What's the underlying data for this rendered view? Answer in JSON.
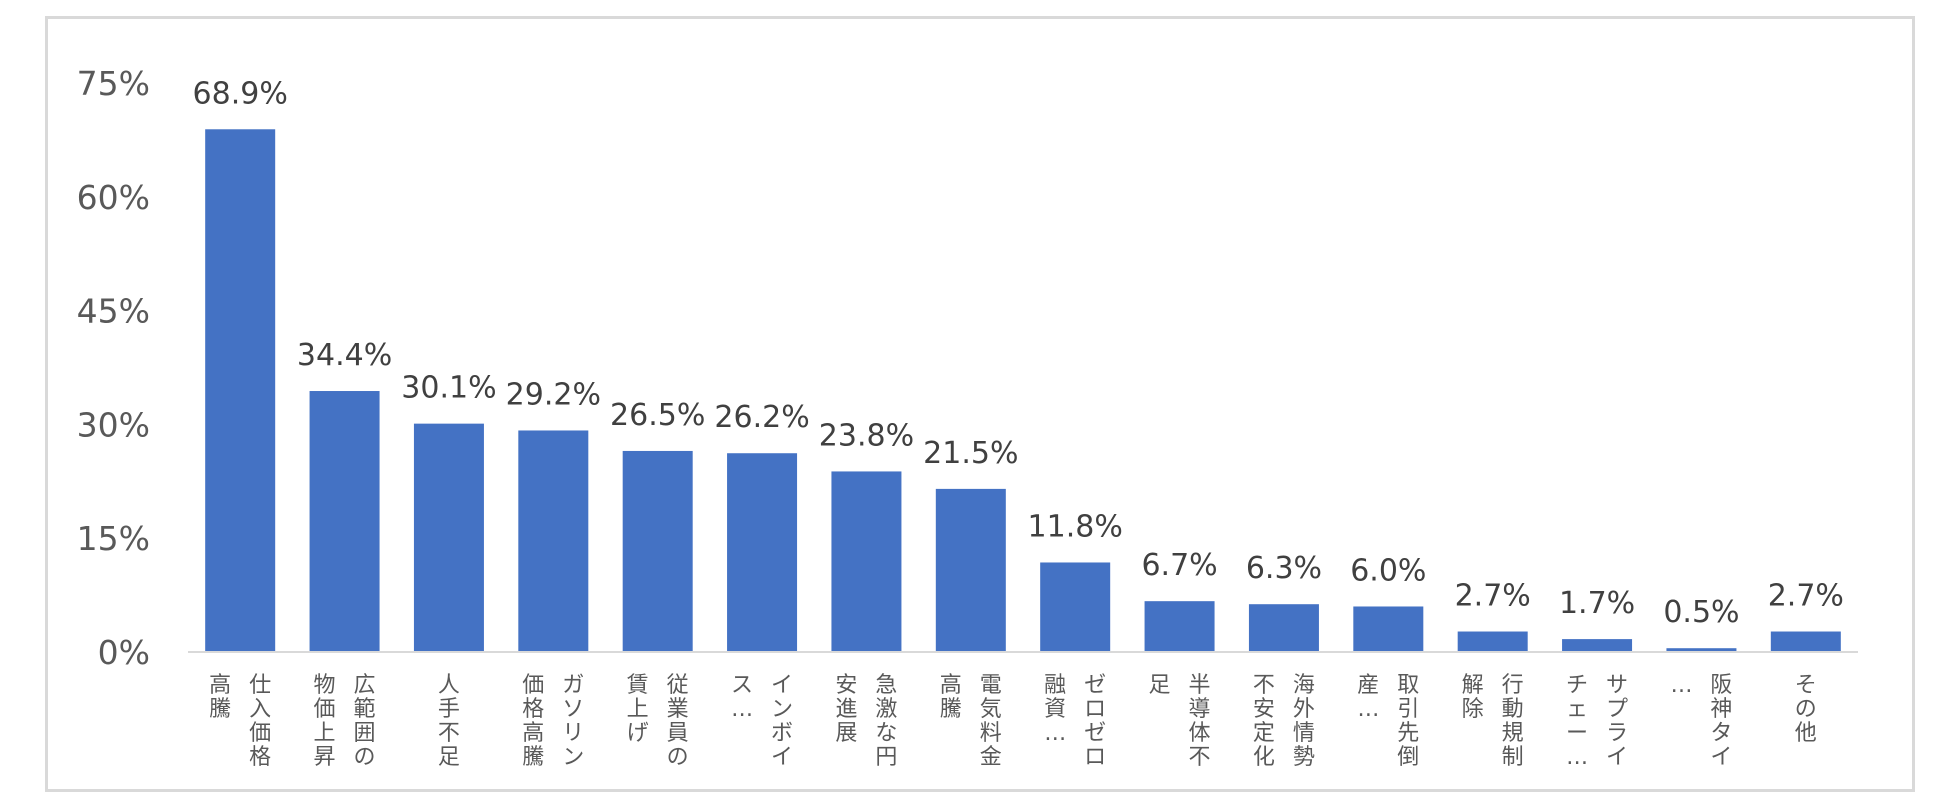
{
  "chart_data": {
    "type": "bar",
    "categories": [
      "仕入価格高騰",
      "広範囲の物価上昇",
      "人手不足",
      "ガソリン価格高騰",
      "従業員の賃上げ",
      "インボイス…",
      "急激な円安進展",
      "電気料金高騰",
      "ゼロゼロ融資…",
      "半導体不足",
      "海外情勢不安定化",
      "取引先倒産…",
      "行動規制解除",
      "サプライチェー…",
      "阪神タイ…",
      "その他"
    ],
    "values": [
      68.9,
      34.4,
      30.1,
      29.2,
      26.5,
      26.2,
      23.8,
      21.5,
      11.8,
      6.7,
      6.3,
      6.0,
      2.7,
      1.7,
      0.5,
      2.7
    ],
    "data_labels": [
      "68.9%",
      "34.4%",
      "30.1%",
      "29.2%",
      "26.5%",
      "26.2%",
      "23.8%",
      "21.5%",
      "11.8%",
      "6.7%",
      "6.3%",
      "6.0%",
      "2.7%",
      "1.7%",
      "0.5%",
      "2.7%"
    ],
    "y_ticks": [
      0,
      15,
      30,
      45,
      60,
      75
    ],
    "y_tick_labels": [
      "0%",
      "15%",
      "30%",
      "45%",
      "60%",
      "75%"
    ],
    "ylim": [
      0,
      75
    ],
    "bar_color": "#4472c4",
    "grid": false,
    "legend": "none"
  }
}
